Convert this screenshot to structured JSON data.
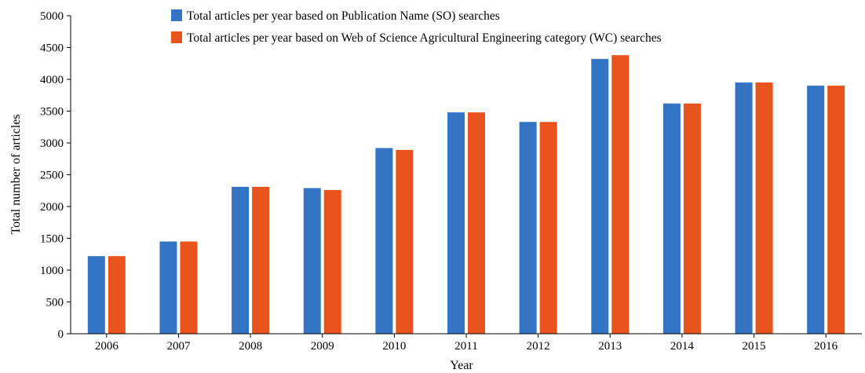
{
  "chart_data": {
    "type": "bar",
    "title": "",
    "xlabel": "Year",
    "ylabel": "Total number of articles",
    "categories": [
      "2006",
      "2007",
      "2008",
      "2009",
      "2010",
      "2011",
      "2012",
      "2013",
      "2014",
      "2015",
      "2016"
    ],
    "series": [
      {
        "name": "Total articles per year based on Publication Name (SO) searches",
        "color": "#3375c4",
        "values": [
          1220,
          1450,
          2310,
          2290,
          2920,
          3480,
          3330,
          4320,
          3620,
          3950,
          3900
        ]
      },
      {
        "name": "Total articles per year based on Web of Science Agricultural Engineering category (WC) searches",
        "color": "#e8541c",
        "values": [
          1220,
          1450,
          2310,
          2260,
          2890,
          3480,
          3330,
          4380,
          3620,
          3950,
          3900
        ]
      }
    ],
    "ylim": [
      0,
      5000
    ],
    "yticks": [
      0,
      500,
      1000,
      1500,
      2000,
      2500,
      3000,
      3500,
      4000,
      4500,
      5000
    ],
    "grid": false,
    "legend": "top-left"
  }
}
